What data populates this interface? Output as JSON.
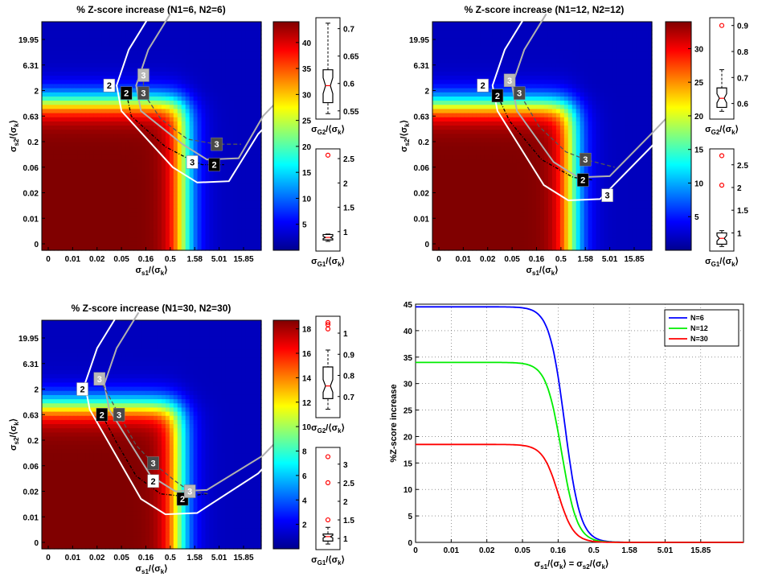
{
  "chart_data": [
    {
      "type": "heatmap",
      "title": "% Z-score increase (N1=6, N2=6)",
      "xlabel": {
        "main": "σ",
        "sub": "s1",
        "rest": "/⟨σ",
        "rest_sub": "k",
        "close": "⟩"
      },
      "ylabel": {
        "main": "σ",
        "sub": "s2",
        "rest": "/⟨σ",
        "rest_sub": "k",
        "close": "⟩"
      },
      "xticks": [
        "0",
        "0.01",
        "0.02",
        "0.05",
        "0.16",
        "0.5",
        "1.58",
        "5.01",
        "15.85"
      ],
      "yticks": [
        "0",
        "0.01",
        "0.02",
        "0.06",
        "0.2",
        "0.63",
        "2",
        "6.31",
        "19.95"
      ],
      "colorbar": {
        "min": 0,
        "max": 44,
        "ticks": [
          "5",
          "10",
          "15",
          "20",
          "25",
          "30",
          "35",
          "40"
        ],
        "tick_values": [
          5,
          10,
          15,
          20,
          25,
          30,
          35,
          40
        ]
      },
      "contour_labels": [
        "2",
        "2",
        "2",
        "3",
        "3",
        "3",
        "3"
      ],
      "box_top": {
        "label_main": "σ",
        "label_sub": "G2",
        "label_rest": "/⟨σ",
        "label_rest_sub": "k",
        "label_close": "⟩",
        "ticks": [
          "0.55",
          "0.6",
          "0.65",
          "0.7"
        ],
        "tick_values": [
          0.55,
          0.6,
          0.65,
          0.7
        ],
        "min": 0.535,
        "max": 0.72,
        "whisker_low": 0.545,
        "q1": 0.565,
        "median": 0.596,
        "q3": 0.625,
        "whisker_high": 0.71,
        "outliers": []
      },
      "box_bottom": {
        "label_main": "σ",
        "label_sub": "G1",
        "label_rest": "/⟨σ",
        "label_rest_sub": "k",
        "label_close": "⟩",
        "ticks": [
          "1",
          "1.5",
          "2",
          "2.5"
        ],
        "tick_values": [
          1,
          1.5,
          2,
          2.5
        ],
        "min": 0.6,
        "max": 2.7,
        "whisker_low": 0.8,
        "q1": 0.83,
        "median": 0.88,
        "q3": 0.94,
        "whisker_high": 0.95,
        "outliers": [
          2.57
        ]
      },
      "scale_max": 44.5,
      "scale_knee": 0.55
    },
    {
      "type": "heatmap",
      "title": "% Z-score increase (N1=12, N2=12)",
      "xlabel": {
        "main": "σ",
        "sub": "s1",
        "rest": "/⟨σ",
        "rest_sub": "k",
        "close": "⟩"
      },
      "ylabel": {
        "main": "σ",
        "sub": "s2",
        "rest": "/⟨σ",
        "rest_sub": "k",
        "close": "⟩"
      },
      "xticks": [
        "0",
        "0.01",
        "0.02",
        "0.05",
        "0.16",
        "0.5",
        "1.58",
        "5.01",
        "15.85"
      ],
      "yticks": [
        "0",
        "0.01",
        "0.02",
        "0.06",
        "0.2",
        "0.63",
        "2",
        "6.31",
        "19.95"
      ],
      "colorbar": {
        "min": 0,
        "max": 34,
        "ticks": [
          "5",
          "10",
          "15",
          "20",
          "25",
          "30"
        ],
        "tick_values": [
          5,
          10,
          15,
          20,
          25,
          30
        ]
      },
      "contour_labels": [
        "2",
        "2",
        "2",
        "3",
        "3",
        "3",
        "3"
      ],
      "box_top": {
        "label_main": "σ",
        "label_sub": "G2",
        "label_rest": "/⟨σ",
        "label_rest_sub": "k",
        "label_close": "⟩",
        "ticks": [
          "0.6",
          "0.7",
          "0.8",
          "0.9"
        ],
        "tick_values": [
          0.6,
          0.7,
          0.8,
          0.9
        ],
        "min": 0.54,
        "max": 0.93,
        "whisker_low": 0.57,
        "q1": 0.585,
        "median": 0.62,
        "q3": 0.66,
        "whisker_high": 0.73,
        "outliers": [
          0.9
        ]
      },
      "box_bottom": {
        "label_main": "σ",
        "label_sub": "G1",
        "label_rest": "/⟨σ",
        "label_rest_sub": "k",
        "label_close": "⟩",
        "ticks": [
          "1",
          "1.5",
          "2",
          "2.5"
        ],
        "tick_values": [
          1,
          1.5,
          2,
          2.5
        ],
        "min": 0.6,
        "max": 2.85,
        "whisker_low": 0.7,
        "q1": 0.75,
        "median": 0.88,
        "q3": 1.0,
        "whisker_high": 1.05,
        "outliers": [
          2.05,
          2.7
        ]
      },
      "scale_max": 34,
      "scale_knee": 0.55
    },
    {
      "type": "heatmap",
      "title": "% Z-score increase (N1=30, N2=30)",
      "xlabel": {
        "main": "σ",
        "sub": "s1",
        "rest": "/⟨σ",
        "rest_sub": "k",
        "close": "⟩"
      },
      "ylabel": {
        "main": "σ",
        "sub": "s2",
        "rest": "/⟨σ",
        "rest_sub": "k",
        "close": "⟩"
      },
      "xticks": [
        "0",
        "0.01",
        "0.02",
        "0.05",
        "0.16",
        "0.5",
        "1.58",
        "5.01",
        "15.85"
      ],
      "yticks": [
        "0",
        "0.01",
        "0.02",
        "0.06",
        "0.2",
        "0.63",
        "2",
        "6.31",
        "19.95"
      ],
      "colorbar": {
        "min": 0,
        "max": 18.7,
        "ticks": [
          "2",
          "4",
          "6",
          "8",
          "10",
          "12",
          "14",
          "16",
          "18"
        ],
        "tick_values": [
          2,
          4,
          6,
          8,
          10,
          12,
          14,
          16,
          18
        ]
      },
      "contour_labels": [
        "2",
        "2",
        "2",
        "2",
        "3",
        "3",
        "3",
        "3"
      ],
      "box_top": {
        "label_main": "σ",
        "label_sub": "G2",
        "label_rest": "/⟨σ",
        "label_rest_sub": "k",
        "label_close": "⟩",
        "ticks": [
          "0.7",
          "0.8",
          "0.9",
          "1"
        ],
        "tick_values": [
          0.7,
          0.8,
          0.9,
          1.0
        ],
        "min": 0.6,
        "max": 1.08,
        "whisker_low": 0.64,
        "q1": 0.69,
        "median": 0.75,
        "q3": 0.84,
        "whisker_high": 0.92,
        "outliers": [
          1.02,
          1.04,
          1.05
        ]
      },
      "box_bottom": {
        "label_main": "σ",
        "label_sub": "G1",
        "label_rest": "/⟨σ",
        "label_rest_sub": "k",
        "label_close": "⟩",
        "ticks": [
          "1",
          "1.5",
          "2",
          "2.5",
          "3"
        ],
        "tick_values": [
          1,
          1.5,
          2,
          2.5,
          3
        ],
        "min": 0.7,
        "max": 3.45,
        "whisker_low": 0.85,
        "q1": 0.93,
        "median": 1.05,
        "q3": 1.12,
        "whisker_high": 1.3,
        "outliers": [
          1.5,
          2.5,
          3.2
        ]
      },
      "scale_max": 18.7,
      "scale_knee": 0.55
    },
    {
      "type": "line",
      "xlabel": {
        "main": "σ",
        "sub": "s1",
        "rest": "/⟨σ",
        "rest_sub": "k",
        "mid": "⟩ = σ",
        "sub2": "s2",
        "rest2": "/⟨σ",
        "rest2_sub": "k",
        "close": "⟩"
      },
      "ylabel": "%Z-score increase",
      "xticks": [
        "0",
        "0.01",
        "0.02",
        "0.05",
        "0.16",
        "0.5",
        "1.58",
        "5.01",
        "15.85"
      ],
      "yticks": [
        "0",
        "5",
        "10",
        "15",
        "20",
        "25",
        "30",
        "35",
        "40",
        "45"
      ],
      "ylim": [
        0,
        45
      ],
      "grid": true,
      "legend_position": "top-right",
      "series": [
        {
          "name": "N=6",
          "color": "#0000ff",
          "plateau": 44.5,
          "knee": 0.62
        },
        {
          "name": "N=12",
          "color": "#00ee00",
          "plateau": 34.0,
          "knee": 0.56
        },
        {
          "name": "N=30",
          "color": "#ff0000",
          "plateau": 18.5,
          "knee": 0.5
        }
      ]
    }
  ]
}
